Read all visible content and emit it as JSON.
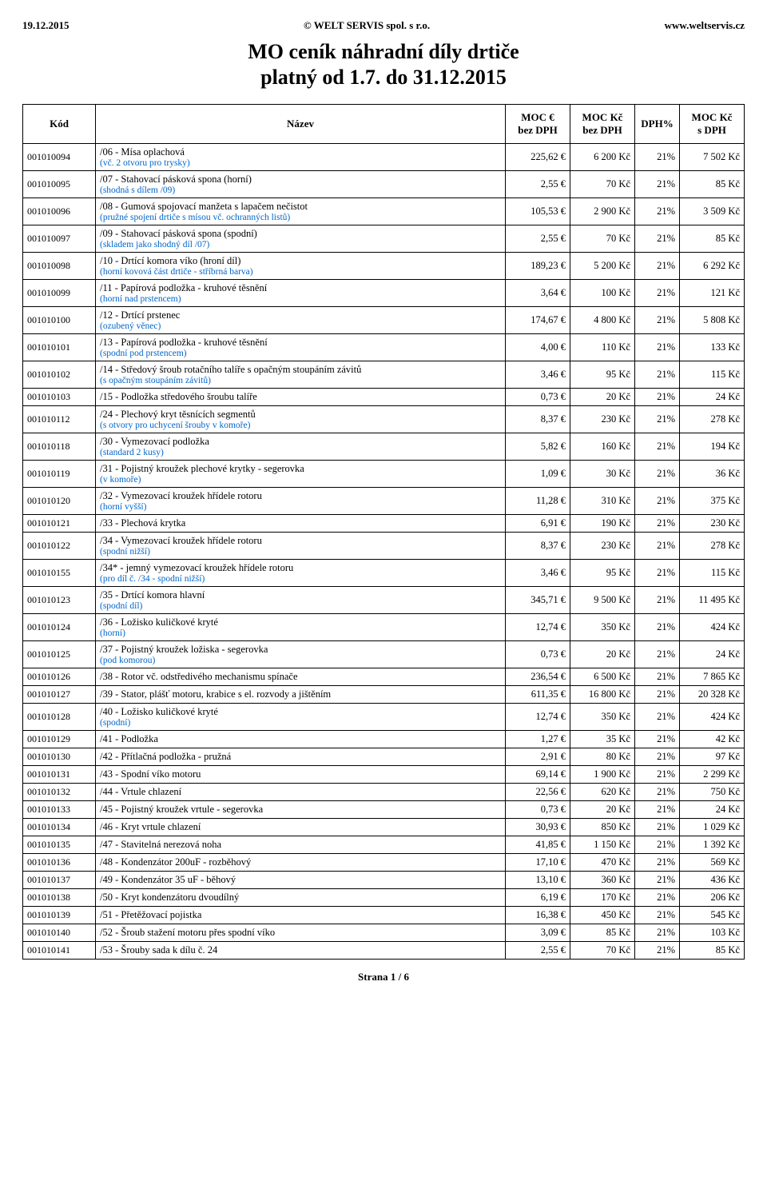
{
  "header": {
    "left": "19.12.2015",
    "center": "© WELT SERVIS spol. s r.o.",
    "right": "www.weltservis.cz"
  },
  "title1": "MO ceník náhradní díly drtiče",
  "title2": "platný od 1.7. do 31.12.2015",
  "columns": [
    "Kód",
    "Název",
    "MOC €\nbez DPH",
    "MOC Kč\nbez DPH",
    "DPH%",
    "MOC Kč\ns DPH"
  ],
  "sub_color": "#0066cc",
  "rows": [
    {
      "k": "001010094",
      "n": "/06 - Mísa oplachová",
      "s": "(vč. 2 otvoru pro trysky)",
      "e": "225,62 €",
      "kc": "6 200 Kč",
      "d": "21%",
      "t": "7 502 Kč"
    },
    {
      "k": "001010095",
      "n": "/07 - Stahovací pásková spona (horní)",
      "s": "(shodná s dílem /09)",
      "e": "2,55 €",
      "kc": "70 Kč",
      "d": "21%",
      "t": "85 Kč"
    },
    {
      "k": "001010096",
      "n": "/08 - Gumová spojovací manžeta s lapačem nečistot",
      "s": "(pružné spojení drtiče s mísou vč. ochranných listů)",
      "e": "105,53 €",
      "kc": "2 900 Kč",
      "d": "21%",
      "t": "3 509 Kč"
    },
    {
      "k": "001010097",
      "n": "/09 - Stahovací pásková spona (spodní)",
      "s": "(skladem jako shodný díl /07)",
      "e": "2,55 €",
      "kc": "70 Kč",
      "d": "21%",
      "t": "85 Kč"
    },
    {
      "k": "001010098",
      "n": "/10 - Drtící komora víko (hroní díl)",
      "s": "(horní kovová část drtiče - stříbrná barva)",
      "e": "189,23 €",
      "kc": "5 200 Kč",
      "d": "21%",
      "t": "6 292 Kč"
    },
    {
      "k": "001010099",
      "n": "/11 - Papírová podložka - kruhové těsnění",
      "s": "(horní nad prstencem)",
      "e": "3,64 €",
      "kc": "100 Kč",
      "d": "21%",
      "t": "121 Kč"
    },
    {
      "k": "001010100",
      "n": "/12 - Drtící prstenec",
      "s": "(ozubený věnec)",
      "e": "174,67 €",
      "kc": "4 800 Kč",
      "d": "21%",
      "t": "5 808 Kč"
    },
    {
      "k": "001010101",
      "n": "/13 - Papírová podložka - kruhové těsnění",
      "s": "(spodní pod prstencem)",
      "e": "4,00 €",
      "kc": "110 Kč",
      "d": "21%",
      "t": "133 Kč"
    },
    {
      "k": "001010102",
      "n": "/14 - Středový šroub rotačního talíře s opačným stoupáním závitů",
      "s": "(s opačným stoupáním závitů)",
      "e": "3,46 €",
      "kc": "95 Kč",
      "d": "21%",
      "t": "115 Kč"
    },
    {
      "k": "001010103",
      "n": "/15 - Podložka středového šroubu talíře",
      "s": "",
      "e": "0,73 €",
      "kc": "20 Kč",
      "d": "21%",
      "t": "24 Kč"
    },
    {
      "k": "001010112",
      "n": "/24 - Plechový kryt těsnících segmentů",
      "s": "(s otvory pro uchycení šrouby v komoře)",
      "e": "8,37 €",
      "kc": "230 Kč",
      "d": "21%",
      "t": "278 Kč"
    },
    {
      "k": "001010118",
      "n": "/30 - Vymezovací podložka",
      "s": "(standard 2 kusy)",
      "e": "5,82 €",
      "kc": "160 Kč",
      "d": "21%",
      "t": "194 Kč"
    },
    {
      "k": "001010119",
      "n": "/31 - Pojistný kroužek plechové krytky - segerovka",
      "s": "(v komoře)",
      "e": "1,09 €",
      "kc": "30 Kč",
      "d": "21%",
      "t": "36 Kč"
    },
    {
      "k": "001010120",
      "n": "/32 - Vymezovací kroužek hřídele rotoru",
      "s": "(horní vyšší)",
      "e": "11,28 €",
      "kc": "310 Kč",
      "d": "21%",
      "t": "375 Kč"
    },
    {
      "k": "001010121",
      "n": "/33 - Plechová krytka",
      "s": "",
      "e": "6,91 €",
      "kc": "190 Kč",
      "d": "21%",
      "t": "230 Kč"
    },
    {
      "k": "001010122",
      "n": "/34 - Vymezovací kroužek hřídele rotoru",
      "s": "(spodní nižší)",
      "e": "8,37 €",
      "kc": "230 Kč",
      "d": "21%",
      "t": "278 Kč"
    },
    {
      "k": "001010155",
      "n": "/34* - jemný vymezovací kroužek hřídele rotoru",
      "s": "(pro díl č. /34 - spodní nižší)",
      "e": "3,46 €",
      "kc": "95 Kč",
      "d": "21%",
      "t": "115 Kč"
    },
    {
      "k": "001010123",
      "n": "/35 - Drtící komora hlavní",
      "s": "(spodní díl)",
      "e": "345,71 €",
      "kc": "9 500 Kč",
      "d": "21%",
      "t": "11 495 Kč"
    },
    {
      "k": "001010124",
      "n": "/36 - Ložisko kuličkové kryté",
      "s": "(horní)",
      "e": "12,74 €",
      "kc": "350 Kč",
      "d": "21%",
      "t": "424 Kč"
    },
    {
      "k": "001010125",
      "n": "/37 - Pojistný kroužek ložiska - segerovka",
      "s": "(pod komorou)",
      "e": "0,73 €",
      "kc": "20 Kč",
      "d": "21%",
      "t": "24 Kč"
    },
    {
      "k": "001010126",
      "n": "/38 - Rotor vč. odstředivého mechanismu spínače",
      "s": "",
      "e": "236,54 €",
      "kc": "6 500 Kč",
      "d": "21%",
      "t": "7 865 Kč"
    },
    {
      "k": "001010127",
      "n": "/39 - Stator, plášť motoru, krabice s el. rozvody a jištěním",
      "s": "",
      "e": "611,35 €",
      "kc": "16 800 Kč",
      "d": "21%",
      "t": "20 328 Kč"
    },
    {
      "k": "001010128",
      "n": "/40 - Ložisko kuličkové kryté",
      "s": "(spodní)",
      "e": "12,74 €",
      "kc": "350 Kč",
      "d": "21%",
      "t": "424 Kč"
    },
    {
      "k": "001010129",
      "n": "/41 - Podložka",
      "s": "",
      "e": "1,27 €",
      "kc": "35 Kč",
      "d": "21%",
      "t": "42 Kč"
    },
    {
      "k": "001010130",
      "n": "/42 - Přítlačná podložka - pružná",
      "s": "",
      "e": "2,91 €",
      "kc": "80 Kč",
      "d": "21%",
      "t": "97 Kč"
    },
    {
      "k": "001010131",
      "n": "/43 - Spodní víko motoru",
      "s": "",
      "e": "69,14 €",
      "kc": "1 900 Kč",
      "d": "21%",
      "t": "2 299 Kč"
    },
    {
      "k": "001010132",
      "n": "/44 - Vrtule chlazení",
      "s": "",
      "e": "22,56 €",
      "kc": "620 Kč",
      "d": "21%",
      "t": "750 Kč"
    },
    {
      "k": "001010133",
      "n": "/45 - Pojistný kroužek vrtule - segerovka",
      "s": "",
      "e": "0,73 €",
      "kc": "20 Kč",
      "d": "21%",
      "t": "24 Kč"
    },
    {
      "k": "001010134",
      "n": "/46 - Kryt vrtule chlazení",
      "s": "",
      "e": "30,93 €",
      "kc": "850 Kč",
      "d": "21%",
      "t": "1 029 Kč"
    },
    {
      "k": "001010135",
      "n": "/47 - Stavitelná nerezová noha",
      "s": "",
      "e": "41,85 €",
      "kc": "1 150 Kč",
      "d": "21%",
      "t": "1 392 Kč"
    },
    {
      "k": "001010136",
      "n": "/48 - Kondenzátor 200uF - rozběhový",
      "s": "",
      "e": "17,10 €",
      "kc": "470 Kč",
      "d": "21%",
      "t": "569 Kč"
    },
    {
      "k": "001010137",
      "n": "/49 - Kondenzátor 35 uF - běhový",
      "s": "",
      "e": "13,10 €",
      "kc": "360 Kč",
      "d": "21%",
      "t": "436 Kč"
    },
    {
      "k": "001010138",
      "n": "/50 - Kryt kondenzátoru dvoudílný",
      "s": "",
      "e": "6,19 €",
      "kc": "170 Kč",
      "d": "21%",
      "t": "206 Kč"
    },
    {
      "k": "001010139",
      "n": "/51 - Přetěžovací pojistka",
      "s": "",
      "e": "16,38 €",
      "kc": "450 Kč",
      "d": "21%",
      "t": "545 Kč"
    },
    {
      "k": "001010140",
      "n": "/52 - Šroub stažení motoru přes spodní víko",
      "s": "",
      "e": "3,09 €",
      "kc": "85 Kč",
      "d": "21%",
      "t": "103 Kč"
    },
    {
      "k": "001010141",
      "n": "/53 - Šrouby sada k dílu č. 24",
      "s": "",
      "e": "2,55 €",
      "kc": "70 Kč",
      "d": "21%",
      "t": "85 Kč"
    }
  ],
  "footer": "Strana 1 / 6"
}
